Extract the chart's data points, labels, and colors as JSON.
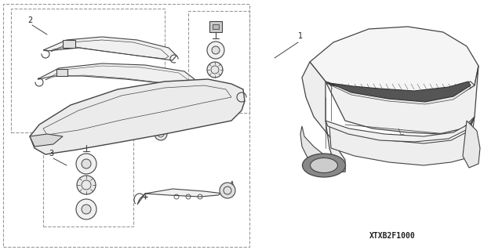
{
  "fig_width": 6.4,
  "fig_height": 3.19,
  "dpi": 100,
  "bg_color": "#ffffff",
  "lc": "#444444",
  "dc": "#999999",
  "tc": "#222222",
  "part_number": "XTXB2F1000",
  "label1": "1",
  "label2": "2",
  "label3": "3"
}
